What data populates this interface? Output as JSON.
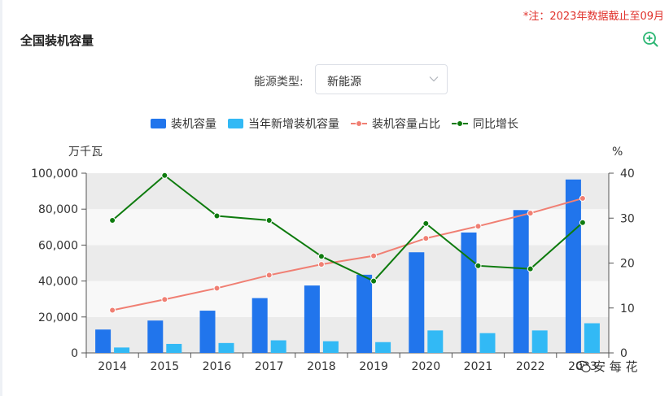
{
  "header": {
    "note": "*注：2023年数据截止至09月",
    "title": "全国装机容量"
  },
  "icons": {
    "zoom": "zoom-in-icon",
    "arrow": "chevron-down-icon",
    "watermark": "wechat-icon"
  },
  "filter": {
    "label": "能源类型:",
    "value": "新能源"
  },
  "watermark": "安 每 花",
  "colors": {
    "installed": "#2175ec",
    "new_installed": "#32b9f5",
    "share": "#f07f73",
    "yoy": "#0e7b0e",
    "note": "#e0312b",
    "zoom": "#2bb673"
  },
  "chart_data": {
    "type": "bar",
    "categories": [
      "2014",
      "2015",
      "2016",
      "2017",
      "2018",
      "2019",
      "2020",
      "2021",
      "2022",
      "2023"
    ],
    "x_tick_labels": [
      "2014",
      "2015",
      "2016",
      "2017",
      "2018",
      "2019",
      "2020",
      "2021",
      "2022",
      "2023"
    ],
    "y_left": {
      "unit": "万千瓦",
      "min": 0,
      "max": 100000,
      "ticks": [
        "0",
        "20,000",
        "40,000",
        "60,000",
        "80,000",
        "100,000"
      ]
    },
    "y_right": {
      "unit": "%",
      "min": 0,
      "max": 40,
      "ticks": [
        "0",
        "10",
        "20",
        "30",
        "40"
      ]
    },
    "grid": "horizontal banded",
    "legend_position": "top",
    "series": [
      {
        "name": "装机容量",
        "kind": "bar",
        "axis": "left",
        "values": [
          13000,
          18000,
          23500,
          30500,
          37500,
          43500,
          56000,
          67000,
          79500,
          96500
        ]
      },
      {
        "name": "当年新增装机容量",
        "kind": "bar",
        "axis": "left",
        "values": [
          3000,
          5000,
          5500,
          7000,
          6500,
          6000,
          12500,
          11000,
          12500,
          16500
        ]
      },
      {
        "name": "装机容量占比",
        "kind": "line",
        "axis": "right",
        "values": [
          9.5,
          11.9,
          14.4,
          17.3,
          19.7,
          21.6,
          25.5,
          28.2,
          31.1,
          34.4
        ]
      },
      {
        "name": "同比增长",
        "kind": "line",
        "axis": "right",
        "values": [
          29.5,
          39.5,
          30.5,
          29.5,
          21.5,
          16.0,
          28.8,
          19.4,
          18.7,
          29.0
        ]
      }
    ]
  }
}
